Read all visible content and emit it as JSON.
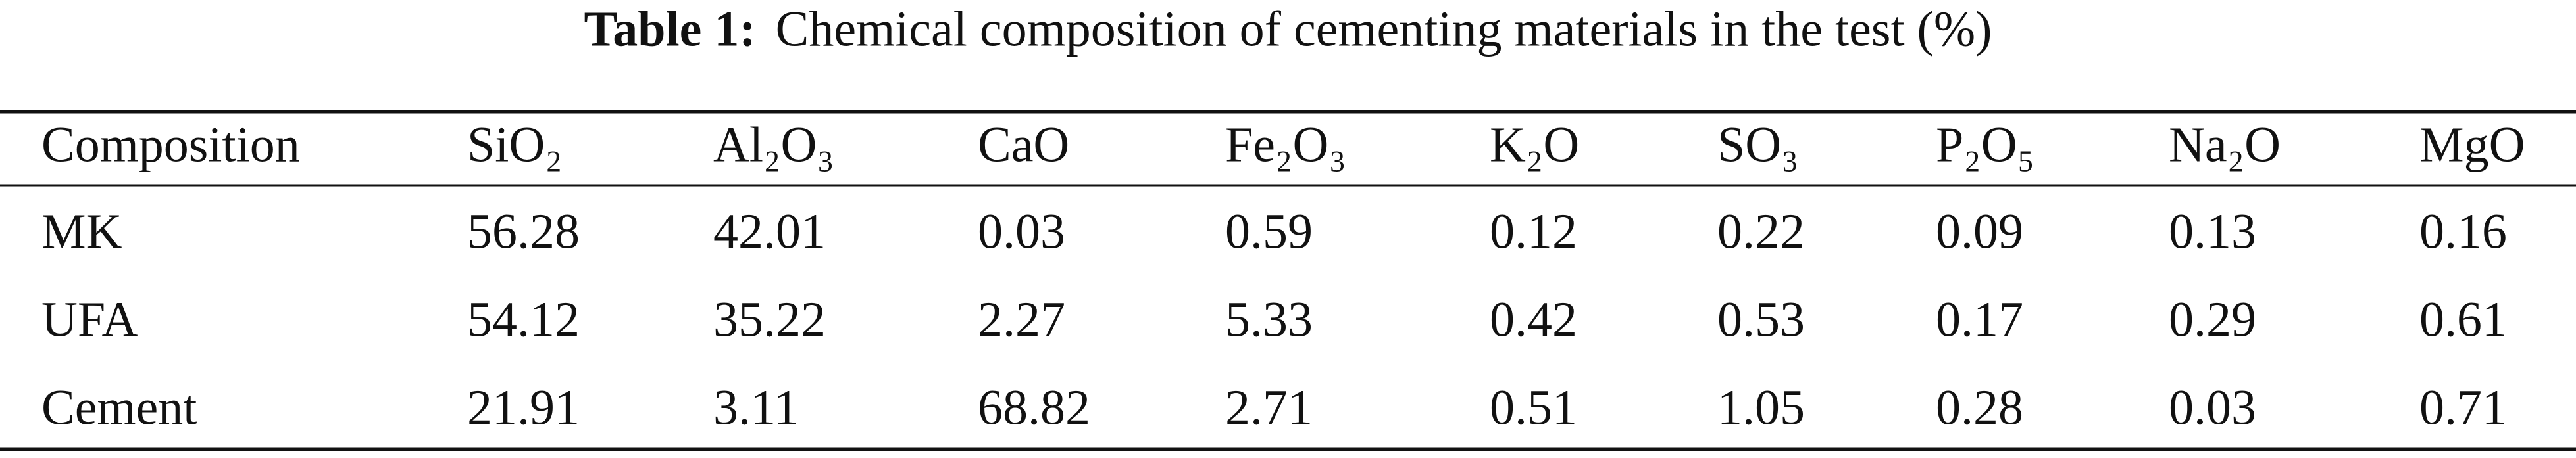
{
  "table": {
    "caption_label": "Table 1:",
    "caption": "Chemical composition of cementing materials in the test (%)",
    "header": [
      "Composition",
      "SiO₂",
      "Al₂O₃",
      "CaO",
      "Fe₂O₃",
      "K₂O",
      "SO₃",
      "P₂O₅",
      "Na₂O",
      "MgO"
    ],
    "rows": [
      [
        "MK",
        "56.28",
        "42.01",
        "0.03",
        "0.59",
        "0.12",
        "0.22",
        "0.09",
        "0.13",
        "0.16"
      ],
      [
        "UFA",
        "54.12",
        "35.22",
        "2.27",
        "5.33",
        "0.42",
        "0.53",
        "0.17",
        "0.29",
        "0.61"
      ],
      [
        "Cement",
        "21.91",
        "3.11",
        "68.82",
        "2.71",
        "0.51",
        "1.05",
        "0.28",
        "0.03",
        "0.71"
      ]
    ]
  }
}
